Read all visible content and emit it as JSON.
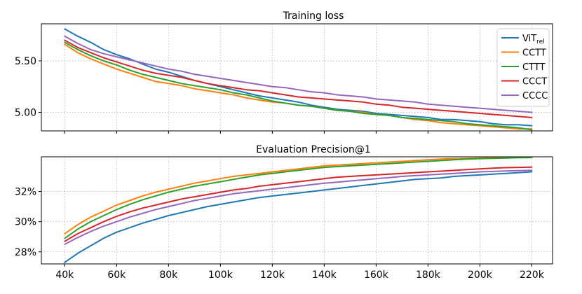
{
  "chart_data": [
    {
      "type": "line",
      "title": "Training loss",
      "xlim": [
        31000,
        228000
      ],
      "ylim": [
        4.82,
        5.86
      ],
      "x": [
        40000,
        45000,
        50000,
        55000,
        60000,
        65000,
        70000,
        75000,
        80000,
        85000,
        90000,
        95000,
        100000,
        105000,
        110000,
        115000,
        120000,
        125000,
        130000,
        135000,
        140000,
        145000,
        150000,
        155000,
        160000,
        165000,
        170000,
        175000,
        180000,
        185000,
        190000,
        195000,
        200000,
        205000,
        210000,
        215000,
        220000
      ],
      "y_ticks": [
        5.0,
        5.5
      ],
      "y_tick_labels": [
        "5.00",
        "5.50"
      ],
      "grid": true,
      "legend": "top-right",
      "series": [
        {
          "name": "ViT",
          "name_subscript": "rel",
          "color": "#1f77b4",
          "values": [
            5.81,
            5.74,
            5.68,
            5.61,
            5.56,
            5.52,
            5.47,
            5.42,
            5.39,
            5.35,
            5.31,
            5.28,
            5.25,
            5.22,
            5.19,
            5.16,
            5.14,
            5.12,
            5.1,
            5.07,
            5.05,
            5.03,
            5.02,
            5.01,
            4.99,
            4.98,
            4.97,
            4.96,
            4.95,
            4.93,
            4.93,
            4.92,
            4.91,
            4.89,
            4.88,
            4.88,
            4.87
          ]
        },
        {
          "name": "CCTT",
          "color": "#ff7f0e",
          "values": [
            5.66,
            5.58,
            5.52,
            5.47,
            5.42,
            5.38,
            5.34,
            5.3,
            5.28,
            5.26,
            5.23,
            5.21,
            5.19,
            5.17,
            5.14,
            5.12,
            5.1,
            5.09,
            5.07,
            5.06,
            5.04,
            5.02,
            5.01,
            5.0,
            4.98,
            4.97,
            4.95,
            4.93,
            4.92,
            4.9,
            4.89,
            4.88,
            4.87,
            4.86,
            4.85,
            4.84,
            4.84
          ]
        },
        {
          "name": "CTTT",
          "color": "#2ca02c",
          "values": [
            5.68,
            5.61,
            5.55,
            5.5,
            5.46,
            5.41,
            5.37,
            5.34,
            5.31,
            5.28,
            5.26,
            5.24,
            5.22,
            5.19,
            5.17,
            5.14,
            5.11,
            5.09,
            5.07,
            5.06,
            5.04,
            5.02,
            5.01,
            4.99,
            4.98,
            4.97,
            4.95,
            4.94,
            4.93,
            4.92,
            4.91,
            4.89,
            4.88,
            4.87,
            4.86,
            4.85,
            4.83
          ]
        },
        {
          "name": "CCCT",
          "color": "#d62728",
          "values": [
            5.7,
            5.63,
            5.58,
            5.53,
            5.49,
            5.45,
            5.41,
            5.38,
            5.36,
            5.34,
            5.31,
            5.28,
            5.26,
            5.24,
            5.22,
            5.21,
            5.19,
            5.17,
            5.15,
            5.14,
            5.13,
            5.12,
            5.11,
            5.1,
            5.08,
            5.07,
            5.05,
            5.04,
            5.03,
            5.02,
            5.01,
            5.0,
            4.99,
            4.98,
            4.97,
            4.96,
            4.95
          ]
        },
        {
          "name": "CCCC",
          "color": "#9467bd",
          "values": [
            5.74,
            5.67,
            5.61,
            5.57,
            5.54,
            5.51,
            5.48,
            5.45,
            5.42,
            5.4,
            5.37,
            5.35,
            5.33,
            5.31,
            5.29,
            5.27,
            5.25,
            5.24,
            5.22,
            5.2,
            5.19,
            5.17,
            5.16,
            5.15,
            5.13,
            5.12,
            5.11,
            5.1,
            5.08,
            5.07,
            5.06,
            5.05,
            5.04,
            5.03,
            5.02,
            5.01,
            5.0
          ]
        }
      ]
    },
    {
      "type": "line",
      "title": "Evaluation Precision@1",
      "xlim": [
        31000,
        228000
      ],
      "ylim": [
        27.2,
        34.3
      ],
      "x": [
        40000,
        45000,
        50000,
        55000,
        60000,
        65000,
        70000,
        75000,
        80000,
        85000,
        90000,
        95000,
        100000,
        105000,
        110000,
        115000,
        120000,
        125000,
        130000,
        135000,
        140000,
        145000,
        150000,
        155000,
        160000,
        165000,
        170000,
        175000,
        180000,
        185000,
        190000,
        195000,
        200000,
        205000,
        210000,
        215000,
        220000
      ],
      "y_ticks": [
        28,
        30,
        32
      ],
      "y_tick_labels": [
        "28%",
        "30%",
        "32%"
      ],
      "x_ticks": [
        40000,
        60000,
        80000,
        100000,
        120000,
        140000,
        160000,
        180000,
        200000,
        220000
      ],
      "x_tick_labels": [
        "40k",
        "60k",
        "80k",
        "100k",
        "120k",
        "140k",
        "160k",
        "180k",
        "200k",
        "220k"
      ],
      "grid": true,
      "series": [
        {
          "name": "ViT",
          "name_subscript": "rel",
          "color": "#1f77b4",
          "values": [
            27.3,
            27.9,
            28.4,
            28.9,
            29.3,
            29.6,
            29.9,
            30.15,
            30.4,
            30.6,
            30.8,
            31.0,
            31.15,
            31.3,
            31.45,
            31.6,
            31.7,
            31.8,
            31.9,
            32.0,
            32.1,
            32.2,
            32.3,
            32.4,
            32.5,
            32.6,
            32.7,
            32.8,
            32.85,
            32.9,
            33.0,
            33.05,
            33.1,
            33.15,
            33.2,
            33.25,
            33.3
          ]
        },
        {
          "name": "CCTT",
          "color": "#ff7f0e",
          "values": [
            29.2,
            29.8,
            30.3,
            30.7,
            31.1,
            31.4,
            31.7,
            31.95,
            32.15,
            32.35,
            32.55,
            32.7,
            32.85,
            33.0,
            33.1,
            33.2,
            33.3,
            33.4,
            33.5,
            33.6,
            33.7,
            33.75,
            33.8,
            33.85,
            33.9,
            33.95,
            34.0,
            34.05,
            34.1,
            34.15,
            34.18,
            34.2,
            34.22,
            34.24,
            34.25,
            34.26,
            34.27
          ]
        },
        {
          "name": "CTTT",
          "color": "#2ca02c",
          "values": [
            28.9,
            29.5,
            30.0,
            30.4,
            30.8,
            31.15,
            31.45,
            31.7,
            31.95,
            32.15,
            32.35,
            32.5,
            32.65,
            32.8,
            32.95,
            33.1,
            33.2,
            33.3,
            33.4,
            33.5,
            33.6,
            33.65,
            33.7,
            33.75,
            33.8,
            33.85,
            33.9,
            33.95,
            34.0,
            34.05,
            34.1,
            34.15,
            34.18,
            34.2,
            34.22,
            34.24,
            34.25
          ]
        },
        {
          "name": "CCCT",
          "color": "#d62728",
          "values": [
            28.7,
            29.2,
            29.6,
            30.0,
            30.35,
            30.65,
            30.9,
            31.1,
            31.3,
            31.5,
            31.65,
            31.8,
            31.95,
            32.1,
            32.2,
            32.35,
            32.45,
            32.55,
            32.65,
            32.75,
            32.85,
            32.95,
            33.0,
            33.05,
            33.1,
            33.15,
            33.2,
            33.25,
            33.3,
            33.35,
            33.4,
            33.45,
            33.5,
            33.55,
            33.58,
            33.6,
            33.62
          ]
        },
        {
          "name": "CCCC",
          "color": "#9467bd",
          "values": [
            28.5,
            28.95,
            29.35,
            29.7,
            30.0,
            30.3,
            30.55,
            30.8,
            31.0,
            31.2,
            31.4,
            31.55,
            31.7,
            31.85,
            31.95,
            32.05,
            32.15,
            32.25,
            32.35,
            32.45,
            32.55,
            32.62,
            32.7,
            32.77,
            32.85,
            32.92,
            33.0,
            33.05,
            33.1,
            33.15,
            33.2,
            33.25,
            33.3,
            33.33,
            33.36,
            33.38,
            33.4
          ]
        }
      ]
    }
  ]
}
